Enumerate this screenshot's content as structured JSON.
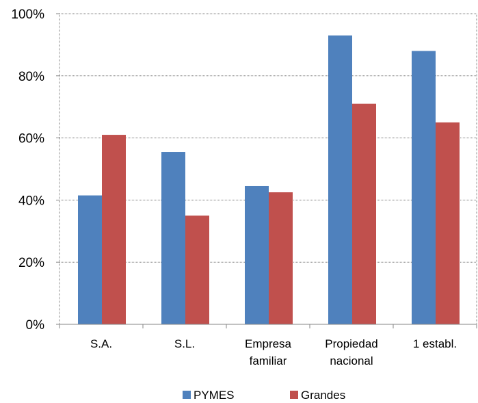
{
  "chart_data": {
    "type": "bar",
    "categories": [
      [
        "S.A."
      ],
      [
        "S.L."
      ],
      [
        "Empresa",
        "familiar"
      ],
      [
        "Propiedad",
        "nacional"
      ],
      [
        "1 establ."
      ]
    ],
    "series": [
      {
        "name": "PYMES",
        "color": "#4F81BD",
        "values": [
          41.5,
          55.5,
          44.5,
          93,
          88
        ]
      },
      {
        "name": "Grandes",
        "color": "#C0504D",
        "values": [
          61,
          35,
          42.5,
          71,
          65
        ]
      }
    ],
    "ylim": [
      0,
      100
    ],
    "yticks": [
      0,
      20,
      40,
      60,
      80,
      100
    ],
    "ytick_labels": [
      "0%",
      "20%",
      "40%",
      "60%",
      "80%",
      "100%"
    ],
    "grid": true,
    "legend": "bottom"
  }
}
